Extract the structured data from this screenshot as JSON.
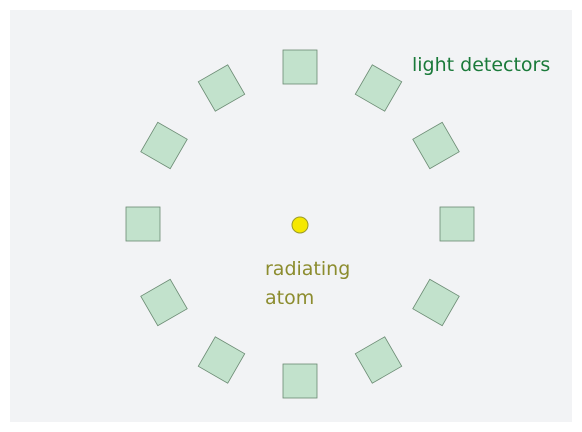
{
  "detector_label": "light detectors",
  "atom_label": [
    "radiating",
    "atom"
  ]
}
